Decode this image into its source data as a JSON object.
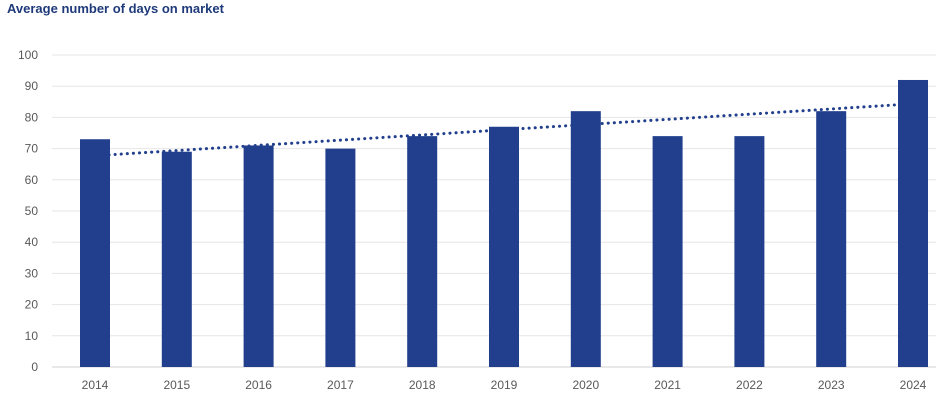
{
  "chart_data": {
    "type": "bar",
    "title": "Average number of days on market",
    "xlabel": "",
    "ylabel": "",
    "categories": [
      "2014",
      "2015",
      "2016",
      "2017",
      "2018",
      "2019",
      "2020",
      "2021",
      "2022",
      "2023",
      "2024"
    ],
    "series": [
      {
        "values": [
          73,
          69,
          71,
          70,
          74,
          77,
          82,
          74,
          74,
          82,
          92
        ],
        "color": "#213f8c"
      }
    ],
    "trendline": {
      "style": "dotted",
      "color": "#213f8c",
      "start_value": 68,
      "end_value": 84
    },
    "ylim": [
      0,
      100
    ],
    "yticks": [
      "0",
      "10",
      "20",
      "30",
      "40",
      "50",
      "60",
      "70",
      "80",
      "90",
      "100"
    ],
    "grid": true,
    "legend": "none"
  }
}
